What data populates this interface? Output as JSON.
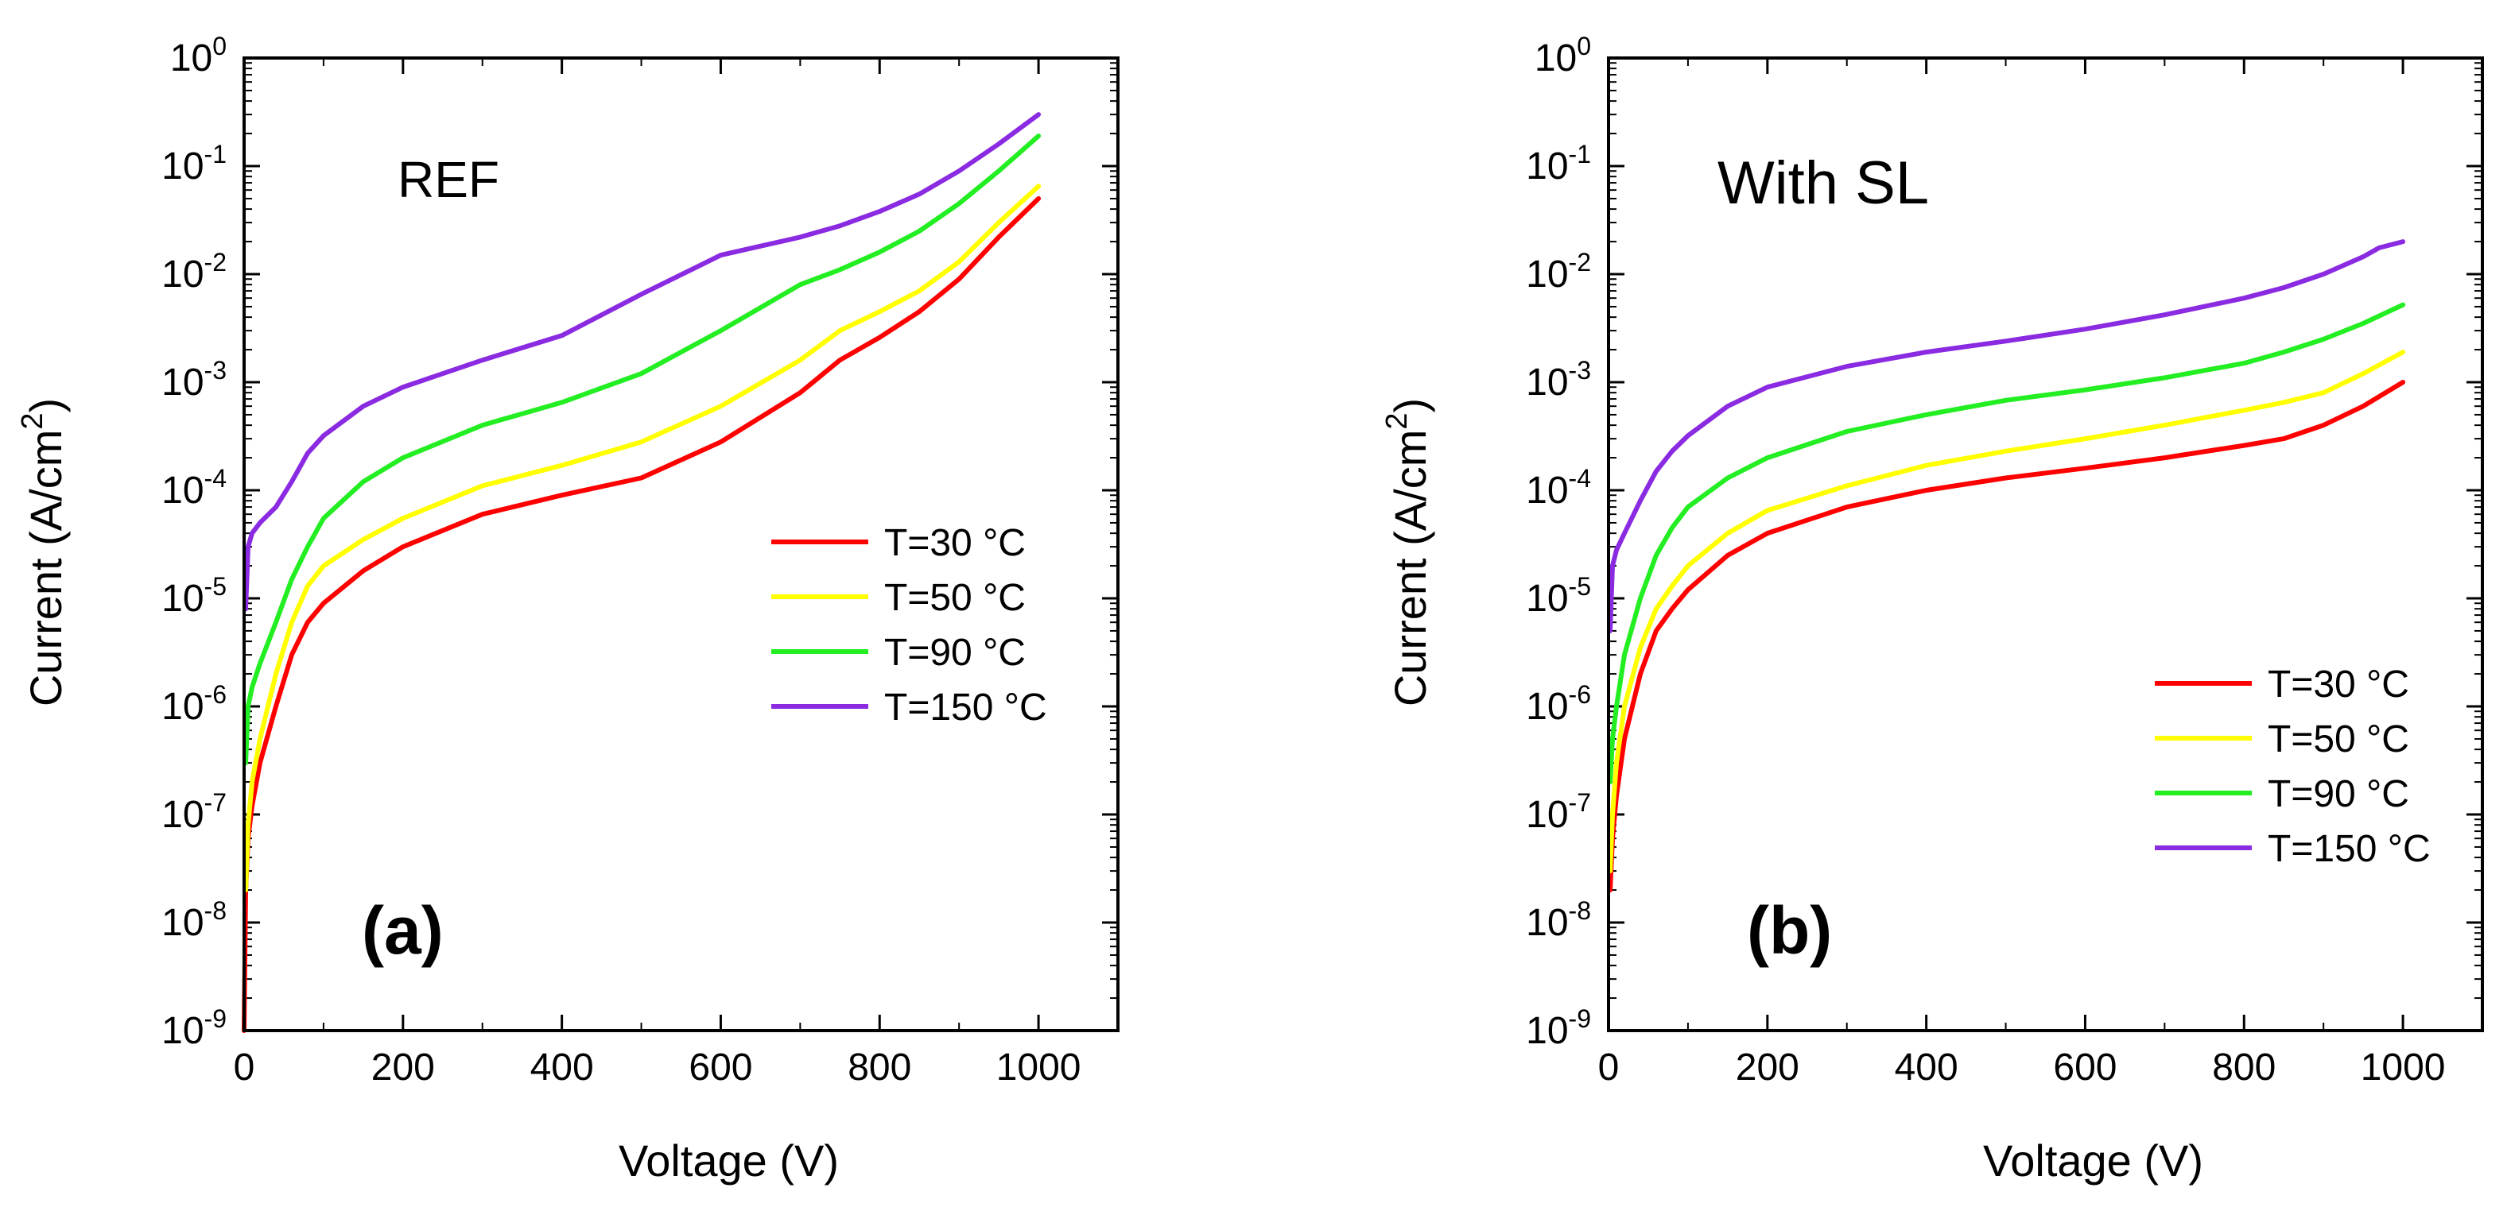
{
  "chart_data": [
    {
      "type": "line",
      "panel_label": "(a)",
      "annotation": "REF",
      "xlabel": "Voltage (V)",
      "ylabel": "Current (A/cm",
      "ylabel_sup": "2",
      "ylabel_close": ")",
      "xscale": "linear",
      "yscale": "log",
      "xlim": [
        0,
        1100
      ],
      "ylim": [
        1e-09,
        1
      ],
      "xticks": [
        0,
        200,
        400,
        600,
        800,
        1000
      ],
      "xtick_labels": [
        "0",
        "200",
        "400",
        "600",
        "800",
        "1000"
      ],
      "ytick_exponents": [
        -9,
        -8,
        -7,
        -6,
        -5,
        -4,
        -3,
        -2,
        -1,
        0
      ],
      "ytick_base": "10",
      "legend": "right",
      "series": [
        {
          "name": "T=30 °C",
          "color": "#ff0000",
          "x": [
            0,
            2,
            5,
            10,
            20,
            40,
            60,
            80,
            100,
            150,
            200,
            300,
            400,
            500,
            600,
            700,
            750,
            800,
            850,
            900,
            950,
            1000
          ],
          "y": [
            1e-09,
            2e-08,
            6e-08,
            1.2e-07,
            3e-07,
            1e-06,
            3e-06,
            6e-06,
            9e-06,
            1.8e-05,
            3e-05,
            6e-05,
            9e-05,
            0.00013,
            0.00028,
            0.0008,
            0.0016,
            0.0026,
            0.0045,
            0.009,
            0.022,
            0.05
          ]
        },
        {
          "name": "T=50 °C",
          "color": "#ffff00",
          "x": [
            2,
            5,
            10,
            20,
            40,
            60,
            80,
            100,
            150,
            200,
            300,
            400,
            500,
            600,
            700,
            750,
            800,
            850,
            900,
            950,
            1000
          ],
          "y": [
            2e-08,
            8e-08,
            2e-07,
            5e-07,
            2e-06,
            6e-06,
            1.3e-05,
            2e-05,
            3.5e-05,
            5.5e-05,
            0.00011,
            0.00017,
            0.00028,
            0.0006,
            0.0016,
            0.003,
            0.0045,
            0.007,
            0.013,
            0.03,
            0.065
          ]
        },
        {
          "name": "T=90 °C",
          "color": "#22ee22",
          "x": [
            2,
            5,
            10,
            20,
            40,
            60,
            80,
            100,
            150,
            200,
            300,
            400,
            500,
            600,
            700,
            750,
            800,
            850,
            900,
            950,
            1000
          ],
          "y": [
            3e-07,
            1e-06,
            1.5e-06,
            2.5e-06,
            6e-06,
            1.5e-05,
            3e-05,
            5.5e-05,
            0.00012,
            0.0002,
            0.0004,
            0.00065,
            0.0012,
            0.003,
            0.008,
            0.011,
            0.016,
            0.025,
            0.045,
            0.09,
            0.19
          ]
        },
        {
          "name": "T=150 °C",
          "color": "#8a2be2",
          "x": [
            2,
            5,
            10,
            20,
            40,
            60,
            80,
            100,
            150,
            200,
            300,
            400,
            500,
            600,
            700,
            750,
            800,
            850,
            900,
            950,
            1000
          ],
          "y": [
            8e-06,
            3e-05,
            4e-05,
            5e-05,
            7e-05,
            0.00012,
            0.00022,
            0.00032,
            0.0006,
            0.0009,
            0.0016,
            0.0027,
            0.0065,
            0.015,
            0.022,
            0.028,
            0.038,
            0.055,
            0.09,
            0.16,
            0.3
          ]
        }
      ]
    },
    {
      "type": "line",
      "panel_label": "(b)",
      "annotation": "With SL",
      "xlabel": "Voltage (V)",
      "ylabel": "Current (A/cm",
      "ylabel_sup": "2",
      "ylabel_close": ")",
      "xscale": "linear",
      "yscale": "log",
      "xlim": [
        0,
        1100
      ],
      "ylim": [
        1e-09,
        1
      ],
      "xticks": [
        0,
        200,
        400,
        600,
        800,
        1000
      ],
      "xtick_labels": [
        "0",
        "200",
        "400",
        "600",
        "800",
        "1000"
      ],
      "ytick_exponents": [
        -9,
        -8,
        -7,
        -6,
        -5,
        -4,
        -3,
        -2,
        -1,
        0
      ],
      "ytick_base": "10",
      "legend": "bottom-right",
      "series": [
        {
          "name": "T=30 °C",
          "color": "#ff0000",
          "x": [
            2,
            5,
            10,
            20,
            40,
            60,
            80,
            100,
            150,
            200,
            300,
            400,
            500,
            600,
            700,
            800,
            850,
            900,
            950,
            1000
          ],
          "y": [
            2e-08,
            6e-08,
            1.5e-07,
            5e-07,
            2e-06,
            5e-06,
            8e-06,
            1.2e-05,
            2.5e-05,
            4e-05,
            7e-05,
            0.0001,
            0.00013,
            0.00016,
            0.0002,
            0.00026,
            0.0003,
            0.0004,
            0.0006,
            0.001
          ]
        },
        {
          "name": "T=50 °C",
          "color": "#ffff00",
          "x": [
            2,
            5,
            10,
            20,
            40,
            60,
            80,
            100,
            150,
            200,
            300,
            400,
            500,
            600,
            700,
            800,
            850,
            900,
            950,
            1000
          ],
          "y": [
            3e-08,
            1e-07,
            3e-07,
            1e-06,
            3.5e-06,
            8e-06,
            1.3e-05,
            2e-05,
            4e-05,
            6.5e-05,
            0.00011,
            0.00017,
            0.00023,
            0.0003,
            0.0004,
            0.00055,
            0.00065,
            0.0008,
            0.0012,
            0.0019
          ]
        },
        {
          "name": "T=90 °C",
          "color": "#22ee22",
          "x": [
            2,
            5,
            10,
            20,
            40,
            60,
            80,
            100,
            150,
            200,
            300,
            400,
            500,
            600,
            700,
            800,
            850,
            900,
            950,
            1000
          ],
          "y": [
            2e-07,
            5e-07,
            1e-06,
            3e-06,
            1e-05,
            2.5e-05,
            4.5e-05,
            7e-05,
            0.00013,
            0.0002,
            0.00035,
            0.0005,
            0.00068,
            0.00085,
            0.0011,
            0.0015,
            0.0019,
            0.0025,
            0.0035,
            0.0052
          ]
        },
        {
          "name": "T=150 °C",
          "color": "#8a2be2",
          "x": [
            2,
            5,
            10,
            20,
            40,
            60,
            80,
            100,
            150,
            200,
            300,
            400,
            500,
            600,
            700,
            800,
            850,
            900,
            950,
            970,
            1000
          ],
          "y": [
            5e-06,
            2e-05,
            2.8e-05,
            4e-05,
            8e-05,
            0.00015,
            0.00023,
            0.00032,
            0.0006,
            0.0009,
            0.0014,
            0.0019,
            0.0024,
            0.0031,
            0.0042,
            0.006,
            0.0075,
            0.01,
            0.0145,
            0.0175,
            0.02
          ]
        }
      ]
    }
  ]
}
